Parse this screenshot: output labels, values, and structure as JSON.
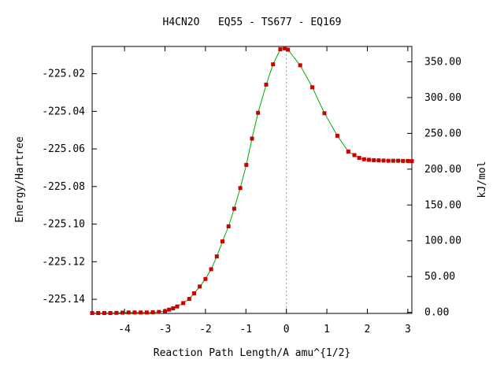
{
  "chart_data": {
    "type": "line",
    "title": "H4CN2O   EQ55 - TS677 - EQ169",
    "xlabel": "Reaction Path Length/A amu^{1/2}",
    "ylabel": "Energy/Hartree",
    "y2label": "kJ/mol",
    "xlim": [
      -4.8,
      3.1
    ],
    "ylim": [
      -225.1475,
      -225.0055
    ],
    "y2lim": [
      -1.5,
      371.4
    ],
    "x_ticks": [
      -4,
      -3,
      -2,
      -1,
      0,
      1,
      2,
      3
    ],
    "x_tick_labels": [
      "-4",
      "-3",
      "-2",
      "-1",
      "0",
      "1",
      "2",
      "3"
    ],
    "y_ticks": [
      -225.02,
      -225.04,
      -225.06,
      -225.08,
      -225.1,
      -225.12,
      -225.14
    ],
    "y_tick_labels": [
      "-225.02",
      "-225.04",
      "-225.06",
      "-225.08",
      "-225.10",
      "-225.12",
      "-225.14"
    ],
    "y2_ticks": [
      0,
      50,
      100,
      150,
      200,
      250,
      300,
      350
    ],
    "y2_tick_labels": [
      "0.00",
      "50.00",
      "100.00",
      "150.00",
      "200.00",
      "250.00",
      "300.00",
      "350.00"
    ],
    "ts_marker_x": 0,
    "line_color": "#00aa00",
    "point_color": "#cc0000",
    "series": [
      {
        "x": [
          -4.8,
          -4.65,
          -4.5,
          -4.35,
          -4.2,
          -4.05,
          -3.9,
          -3.75,
          -3.6,
          -3.45,
          -3.3,
          -3.15,
          -3.0,
          -2.9,
          -2.8,
          -2.7,
          -2.55,
          -2.4,
          -2.28,
          -2.14,
          -2.0,
          -1.86,
          -1.72,
          -1.58,
          -1.43,
          -1.29,
          -1.14,
          -0.99,
          -0.85,
          -0.7,
          -0.5,
          -0.33,
          -0.15,
          -0.04,
          0.04,
          0.34,
          0.64,
          0.94,
          1.26,
          1.53,
          1.68,
          1.8,
          1.92,
          2.04,
          2.16,
          2.28,
          2.4,
          2.52,
          2.64,
          2.76,
          2.88,
          3.0,
          3.1
        ],
        "y": [
          -225.1473,
          -225.1473,
          -225.1473,
          -225.1473,
          -225.1472,
          -225.1471,
          -225.147,
          -225.147,
          -225.147,
          -225.147,
          -225.1469,
          -225.1467,
          -225.1463,
          -225.1455,
          -225.1448,
          -225.1438,
          -225.142,
          -225.1398,
          -225.1368,
          -225.1332,
          -225.1292,
          -225.124,
          -225.1172,
          -225.1092,
          -225.1012,
          -225.0918,
          -225.0808,
          -225.0685,
          -225.0545,
          -225.0408,
          -225.0258,
          -225.015,
          -225.007,
          -225.0065,
          -225.0072,
          -225.0155,
          -225.0272,
          -225.041,
          -225.053,
          -225.0614,
          -225.0633,
          -225.0648,
          -225.0655,
          -225.0658,
          -225.066,
          -225.0661,
          -225.0662,
          -225.0663,
          -225.0663,
          -225.0663,
          -225.0664,
          -225.0664,
          -225.0665
        ]
      }
    ]
  }
}
